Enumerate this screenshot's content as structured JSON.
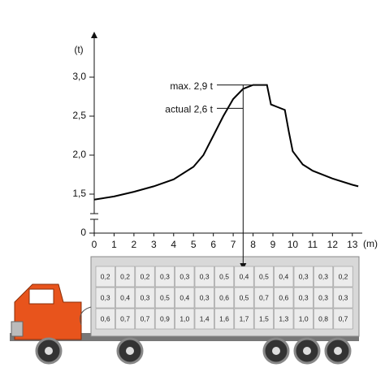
{
  "chart_data": {
    "type": "line",
    "y_label": "(t)",
    "x_label": "(m)",
    "x": [
      0,
      1,
      2,
      3,
      4,
      5,
      5.5,
      6,
      6.5,
      7,
      7.5,
      8,
      8.7,
      8.9,
      9.2,
      9.6,
      9.8,
      10,
      10.5,
      11,
      12,
      13,
      13.3
    ],
    "values": [
      1.43,
      1.47,
      1.53,
      1.6,
      1.69,
      1.85,
      2.0,
      2.25,
      2.5,
      2.72,
      2.85,
      2.9,
      2.9,
      2.65,
      2.62,
      2.58,
      2.3,
      2.05,
      1.88,
      1.8,
      1.7,
      1.62,
      1.6
    ],
    "color": "#000000",
    "xlim": [
      0,
      13.5
    ],
    "xticks": [
      0,
      1,
      2,
      3,
      4,
      5,
      6,
      7,
      8,
      9,
      10,
      11,
      12,
      13
    ],
    "ylim": [
      1.25,
      3.5
    ],
    "axis_break": true,
    "yticks": [
      0,
      {
        "value": 1.5,
        "label": "1,5"
      },
      {
        "value": 2.0,
        "label": "2,0"
      },
      {
        "value": 2.5,
        "label": "2,5"
      },
      {
        "value": 3.0,
        "label": "3,0"
      }
    ],
    "annotations": [
      {
        "text": "max. 2,9 t",
        "value": 2.9
      },
      {
        "text": "actual 2,6 t",
        "value": 2.6
      }
    ],
    "marker_x": 7.5
  },
  "load_grid": {
    "rows": [
      [
        "0,2",
        "0,2",
        "0,2",
        "0,3",
        "0,3",
        "0,3",
        "0,5",
        "0,4",
        "0,5",
        "0,4",
        "0,3",
        "0,3",
        "0,2"
      ],
      [
        "0,3",
        "0,4",
        "0,3",
        "0,5",
        "0,4",
        "0,3",
        "0,6",
        "0,5",
        "0,7",
        "0,6",
        "0,3",
        "0,3",
        "0,3"
      ],
      [
        "0,6",
        "0,7",
        "0,7",
        "0,9",
        "1,0",
        "1,4",
        "1,6",
        "1,7",
        "1,5",
        "1,3",
        "1,0",
        "0,8",
        "0,7"
      ]
    ]
  }
}
